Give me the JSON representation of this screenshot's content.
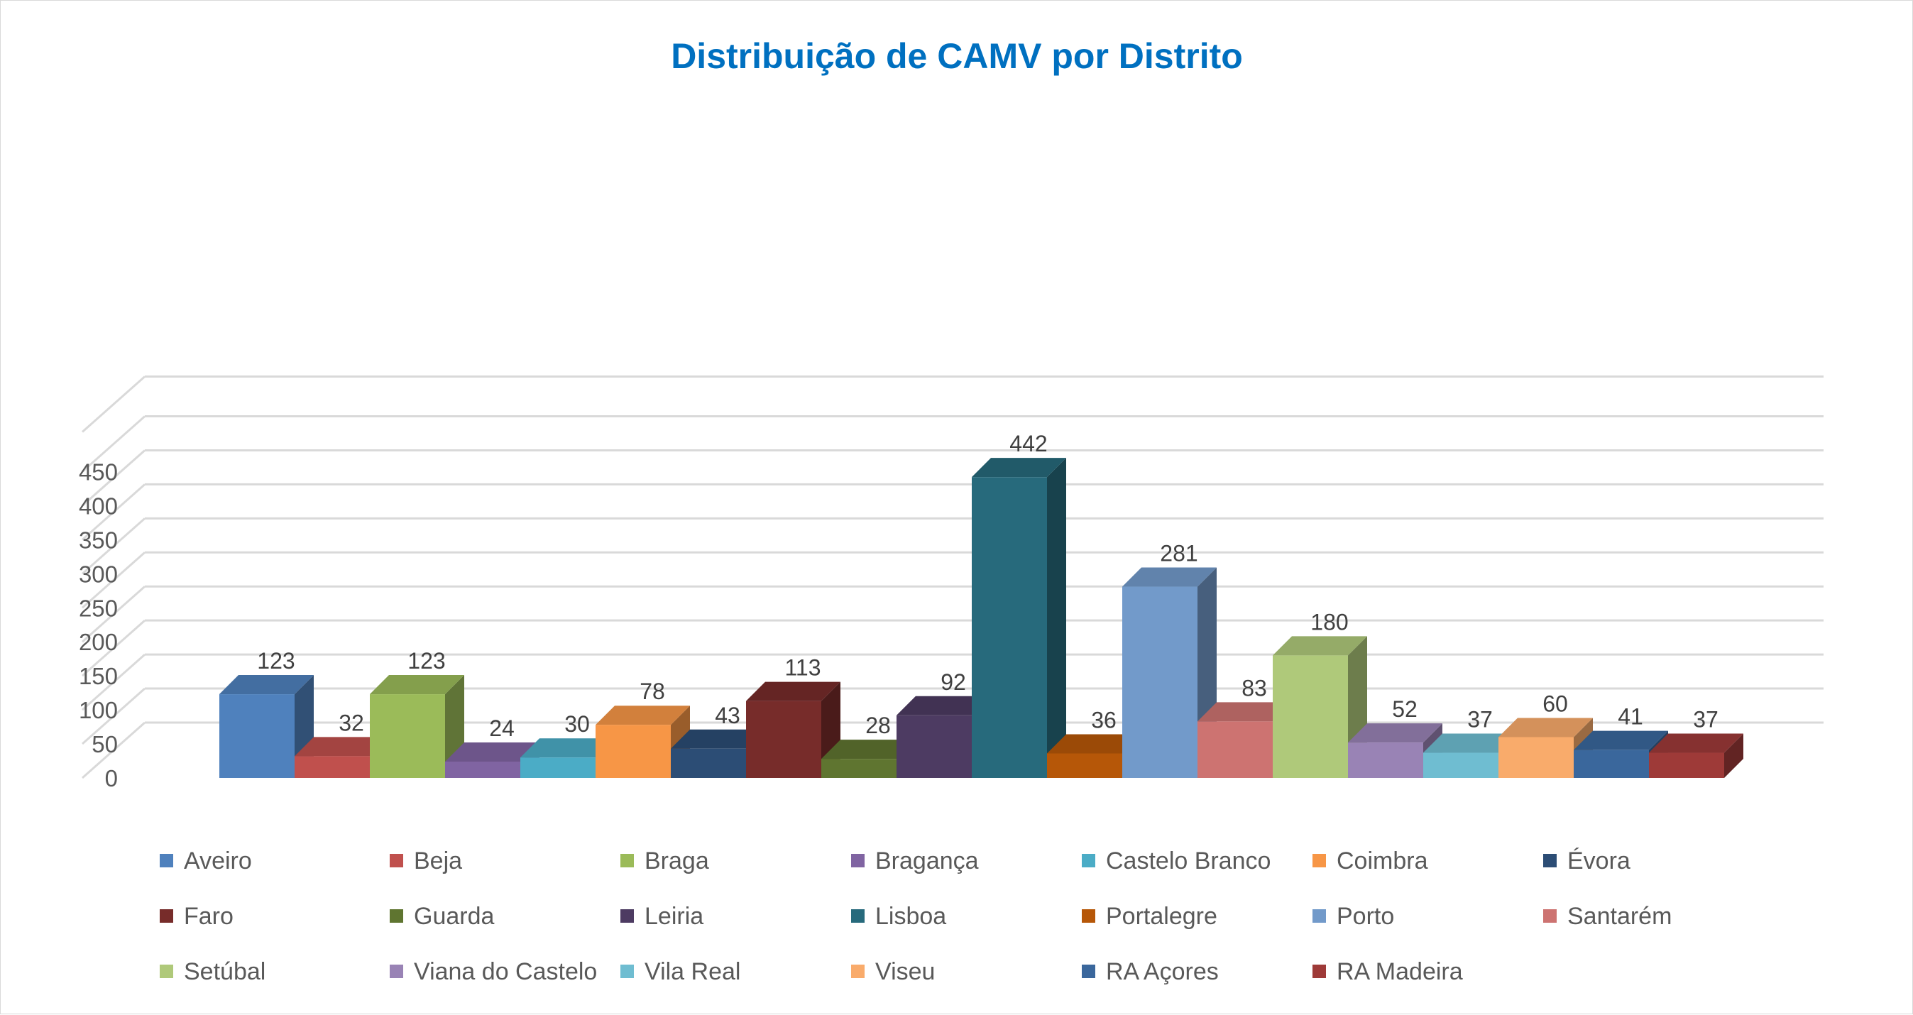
{
  "chart_data": {
    "type": "bar",
    "title": "Distribuição de CAMV por Distrito",
    "title_color": "#0070C0",
    "xlabel": "",
    "ylabel": "",
    "ylim": [
      0,
      450
    ],
    "yticks": [
      0,
      50,
      100,
      150,
      200,
      250,
      300,
      350,
      400,
      450
    ],
    "grid": true,
    "three_d": true,
    "legend_position": "bottom",
    "series": [
      {
        "name": "Aveiro",
        "value": 123,
        "color": "#4F81BD"
      },
      {
        "name": "Beja",
        "value": 32,
        "color": "#C0504D"
      },
      {
        "name": "Braga",
        "value": 123,
        "color": "#9BBB59"
      },
      {
        "name": "Bragança",
        "value": 24,
        "color": "#8064A2"
      },
      {
        "name": "Castelo Branco",
        "value": 30,
        "color": "#4BACC6"
      },
      {
        "name": "Coimbra",
        "value": 78,
        "color": "#F79646"
      },
      {
        "name": "Évora",
        "value": 43,
        "color": "#2C4D75"
      },
      {
        "name": "Faro",
        "value": 113,
        "color": "#772C2A"
      },
      {
        "name": "Guarda",
        "value": 28,
        "color": "#5F7530"
      },
      {
        "name": "Leiria",
        "value": 92,
        "color": "#4D3B62"
      },
      {
        "name": "Lisboa",
        "value": 442,
        "color": "#276A7C"
      },
      {
        "name": "Portalegre",
        "value": 36,
        "color": "#B65708"
      },
      {
        "name": "Porto",
        "value": 281,
        "color": "#729ACA"
      },
      {
        "name": "Santarém",
        "value": 83,
        "color": "#CD7371"
      },
      {
        "name": "Setúbal",
        "value": 180,
        "color": "#AFC97A"
      },
      {
        "name": "Viana do Castelo",
        "value": 52,
        "color": "#9983B5"
      },
      {
        "name": "Vila Real",
        "value": 37,
        "color": "#6FBDD1"
      },
      {
        "name": "Viseu",
        "value": 60,
        "color": "#F9AB6B"
      },
      {
        "name": "RA Açores",
        "value": 41,
        "color": "#3A679C"
      },
      {
        "name": "RA Madeira",
        "value": 37,
        "color": "#9E3A38"
      }
    ]
  }
}
